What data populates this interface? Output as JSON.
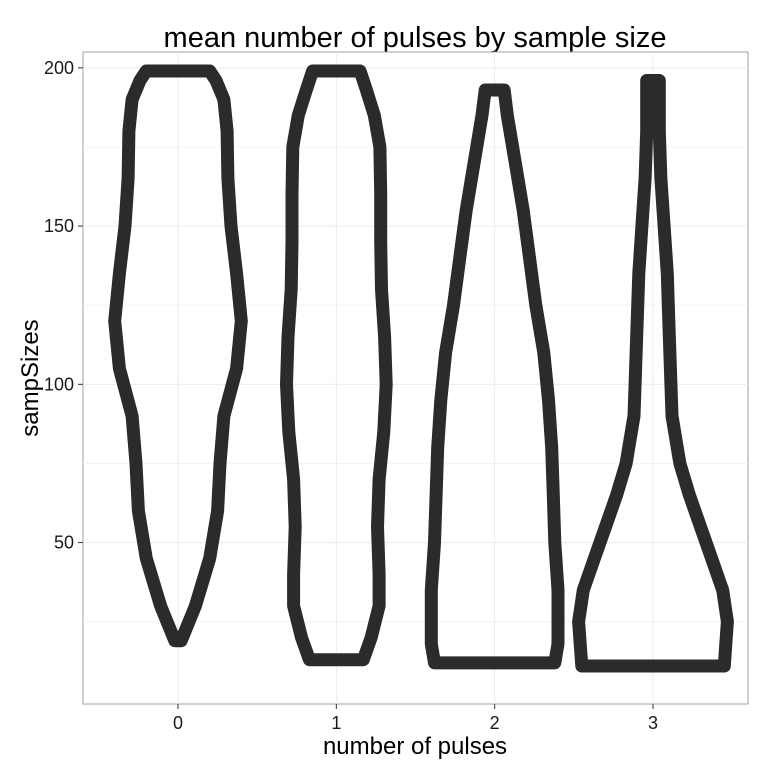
{
  "chart_data": {
    "type": "violin",
    "title": "mean number of pulses by sample size",
    "xlabel": "number of pulses",
    "ylabel": "sampSizes",
    "categories": [
      "0",
      "1",
      "2",
      "3"
    ],
    "y_ticks": [
      50,
      100,
      150,
      200
    ],
    "ylim": [
      -1,
      205
    ],
    "grid": true,
    "outline_color": "#2b2b2b",
    "violins": [
      {
        "category": "0",
        "y_min": 19,
        "y_max": 199,
        "profile": [
          [
            19,
            0.02
          ],
          [
            30,
            0.11
          ],
          [
            45,
            0.2
          ],
          [
            60,
            0.25
          ],
          [
            75,
            0.265
          ],
          [
            90,
            0.29
          ],
          [
            105,
            0.37
          ],
          [
            120,
            0.4
          ],
          [
            135,
            0.37
          ],
          [
            150,
            0.335
          ],
          [
            165,
            0.315
          ],
          [
            180,
            0.31
          ],
          [
            190,
            0.29
          ],
          [
            196,
            0.24
          ],
          [
            199,
            0.2
          ]
        ]
      },
      {
        "category": "1",
        "y_min": 13,
        "y_max": 199,
        "profile": [
          [
            13,
            0.17
          ],
          [
            20,
            0.22
          ],
          [
            30,
            0.27
          ],
          [
            40,
            0.27
          ],
          [
            55,
            0.26
          ],
          [
            70,
            0.27
          ],
          [
            85,
            0.3
          ],
          [
            100,
            0.315
          ],
          [
            115,
            0.305
          ],
          [
            130,
            0.285
          ],
          [
            145,
            0.28
          ],
          [
            160,
            0.28
          ],
          [
            175,
            0.275
          ],
          [
            185,
            0.24
          ],
          [
            193,
            0.19
          ],
          [
            199,
            0.15
          ]
        ]
      },
      {
        "category": "2",
        "y_min": 12,
        "y_max": 193,
        "profile": [
          [
            12,
            0.38
          ],
          [
            18,
            0.4
          ],
          [
            25,
            0.4
          ],
          [
            35,
            0.4
          ],
          [
            50,
            0.38
          ],
          [
            65,
            0.37
          ],
          [
            80,
            0.36
          ],
          [
            95,
            0.34
          ],
          [
            110,
            0.31
          ],
          [
            125,
            0.26
          ],
          [
            140,
            0.22
          ],
          [
            155,
            0.18
          ],
          [
            170,
            0.13
          ],
          [
            185,
            0.08
          ],
          [
            193,
            0.06
          ]
        ]
      },
      {
        "category": "3",
        "y_min": 11,
        "y_max": 196,
        "profile": [
          [
            11,
            0.45
          ],
          [
            18,
            0.46
          ],
          [
            25,
            0.47
          ],
          [
            35,
            0.44
          ],
          [
            45,
            0.37
          ],
          [
            55,
            0.3
          ],
          [
            65,
            0.23
          ],
          [
            75,
            0.17
          ],
          [
            90,
            0.12
          ],
          [
            105,
            0.11
          ],
          [
            120,
            0.1
          ],
          [
            135,
            0.09
          ],
          [
            150,
            0.07
          ],
          [
            165,
            0.05
          ],
          [
            180,
            0.04
          ],
          [
            190,
            0.04
          ],
          [
            196,
            0.04
          ]
        ]
      }
    ]
  }
}
